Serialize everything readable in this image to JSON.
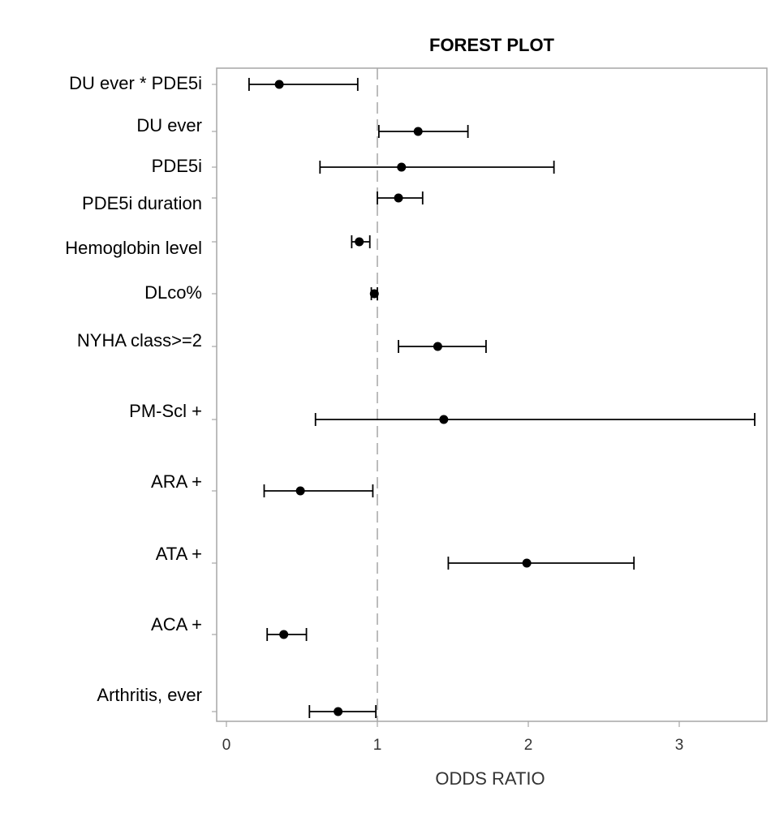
{
  "chart_data": {
    "type": "forest",
    "title": "FOREST PLOT",
    "xlabel": "ODDS RATIO",
    "ylabel": "",
    "xlim": [
      -0.05,
      3.6
    ],
    "xticks": [
      0,
      1,
      2,
      3
    ],
    "xtick_labels": [
      "0",
      "1",
      "2",
      "3"
    ],
    "reference_line": 1,
    "grid": false,
    "rows": [
      {
        "label": "DU ever * PDE5i",
        "estimate": 0.35,
        "lower": 0.15,
        "upper": 0.87
      },
      {
        "label": "DU ever",
        "estimate": 1.27,
        "lower": 1.01,
        "upper": 1.6
      },
      {
        "label": "PDE5i",
        "estimate": 1.16,
        "lower": 0.62,
        "upper": 2.17
      },
      {
        "label": "PDE5i duration",
        "estimate": 1.14,
        "lower": 1.0,
        "upper": 1.3
      },
      {
        "label": "Hemoglobin level",
        "estimate": 0.88,
        "lower": 0.83,
        "upper": 0.95
      },
      {
        "label": "DLco%",
        "estimate": 0.98,
        "lower": 0.96,
        "upper": 1.0
      },
      {
        "label": "NYHA class>=2",
        "estimate": 1.4,
        "lower": 1.14,
        "upper": 1.72
      },
      {
        "label": "PM-Scl +",
        "estimate": 1.44,
        "lower": 0.59,
        "upper": 3.5
      },
      {
        "label": "ARA +",
        "estimate": 0.49,
        "lower": 0.25,
        "upper": 0.97
      },
      {
        "label": "ATA +",
        "estimate": 1.99,
        "lower": 1.47,
        "upper": 2.7
      },
      {
        "label": "ACA +",
        "estimate": 0.38,
        "lower": 0.27,
        "upper": 0.53
      },
      {
        "label": "Arthritis, ever",
        "estimate": 0.74,
        "lower": 0.55,
        "upper": 0.99
      }
    ]
  }
}
